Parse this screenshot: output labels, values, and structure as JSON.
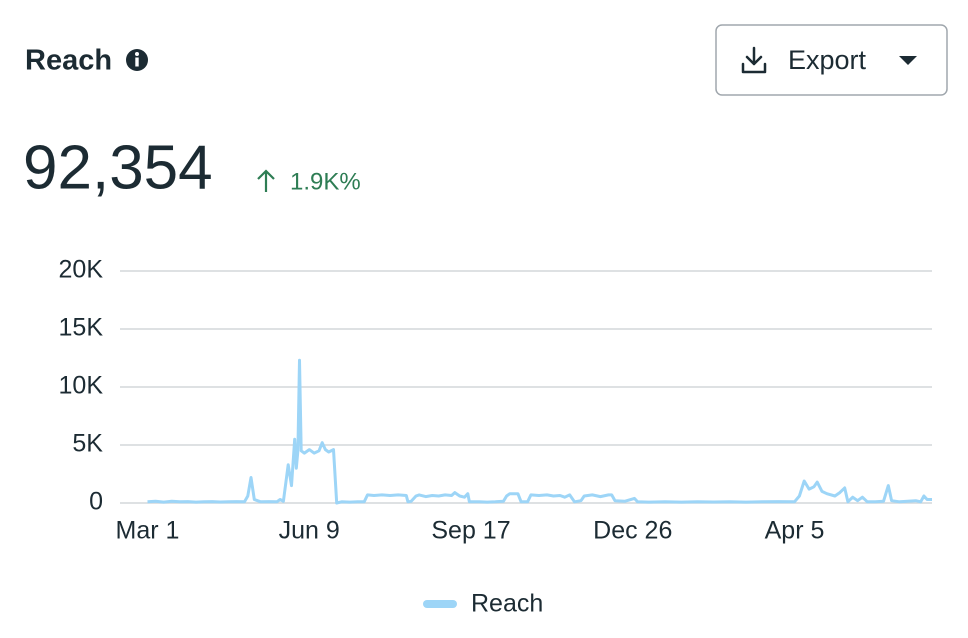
{
  "header": {
    "title": "Reach",
    "button": "Export"
  },
  "summary": {
    "value": "92,354",
    "change": "1.9K%"
  },
  "chart_data": {
    "type": "line",
    "xlim": [
      -17,
      485
    ],
    "xticks": [
      {
        "value": 0,
        "label": "Mar 1"
      },
      {
        "value": 100,
        "label": "Jun 9"
      },
      {
        "value": 200,
        "label": "Sep 17"
      },
      {
        "value": 300,
        "label": "Dec 26"
      },
      {
        "value": 400,
        "label": "Apr 5"
      }
    ],
    "ylim": [
      0,
      20000
    ],
    "yticks": [
      0,
      {
        "value": 5000,
        "label": "5K"
      },
      {
        "value": 10000,
        "label": "10K"
      },
      {
        "value": 15000,
        "label": "15K"
      },
      {
        "value": 20000,
        "label": "20K"
      }
    ],
    "grid": true,
    "x": [
      0,
      5,
      10,
      15,
      20,
      25,
      30,
      35,
      40,
      45,
      50,
      55,
      60,
      62,
      64,
      66,
      70,
      75,
      80,
      82,
      84,
      87,
      89,
      91,
      92,
      93,
      94,
      95,
      97,
      100,
      103,
      106,
      108,
      110,
      112,
      115,
      117,
      120,
      125,
      130,
      134,
      136,
      140,
      145,
      150,
      155,
      160,
      161,
      163,
      166,
      168,
      172,
      176,
      180,
      184,
      188,
      190,
      193,
      196,
      198,
      199,
      205,
      210,
      215,
      220,
      222,
      224,
      229,
      231,
      235,
      237,
      242,
      247,
      251,
      255,
      258,
      261,
      264,
      268,
      270,
      275,
      280,
      285,
      287,
      289,
      295,
      301,
      303,
      310,
      320,
      330,
      340,
      350,
      360,
      370,
      380,
      390,
      400,
      403,
      406,
      409,
      412,
      414,
      417,
      420,
      425,
      428,
      431,
      433,
      436,
      439,
      442,
      445,
      450,
      455,
      458,
      460,
      465,
      470,
      475,
      478,
      480,
      482,
      485
    ],
    "series": [
      {
        "name": "Reach",
        "color": "#9dd5f7",
        "values": [
          100,
          150,
          80,
          150,
          100,
          120,
          80,
          100,
          120,
          90,
          100,
          120,
          100,
          600,
          2200,
          300,
          100,
          120,
          100,
          300,
          150,
          3300,
          1500,
          5500,
          3000,
          4500,
          12300,
          4500,
          4300,
          4600,
          4300,
          4500,
          5200,
          4600,
          4400,
          4600,
          0,
          100,
          80,
          100,
          100,
          700,
          650,
          700,
          650,
          700,
          650,
          100,
          150,
          600,
          700,
          550,
          650,
          600,
          700,
          650,
          900,
          600,
          500,
          800,
          100,
          100,
          80,
          100,
          150,
          600,
          800,
          800,
          100,
          100,
          700,
          650,
          700,
          600,
          650,
          500,
          700,
          100,
          200,
          600,
          700,
          550,
          700,
          700,
          200,
          150,
          400,
          100,
          80,
          100,
          80,
          100,
          90,
          100,
          80,
          100,
          120,
          100,
          600,
          1900,
          1200,
          1400,
          1800,
          1000,
          800,
          600,
          900,
          1300,
          100,
          500,
          200,
          500,
          100,
          100,
          150,
          1500,
          200,
          100,
          150,
          200,
          100,
          600,
          300,
          300
        ]
      }
    ]
  }
}
